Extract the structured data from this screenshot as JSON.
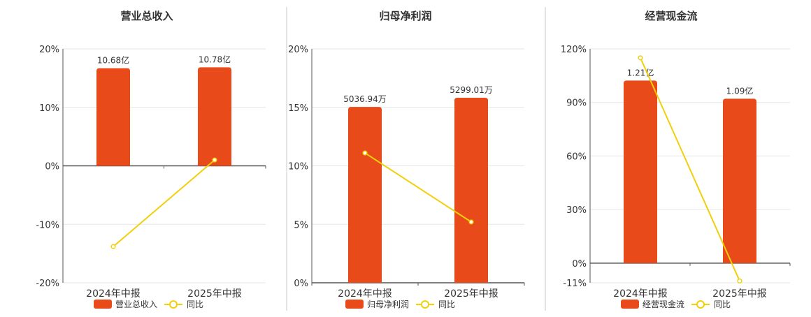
{
  "colors": {
    "bar": "#e84a1a",
    "line": "#f2cf0c",
    "grid": "#e6e6e6",
    "axis": "#555555",
    "divider": "#c8c8c8",
    "text": "#333333"
  },
  "legend_line_label": "同比",
  "chart_data": [
    {
      "type": "bar",
      "title": "营业总收入",
      "categories": [
        "2024年中报",
        "2025年中报"
      ],
      "bar_values": [
        10.68,
        10.78
      ],
      "bar_labels": [
        "10.68亿",
        "10.78亿"
      ],
      "bar_series_name": "营业总收入",
      "line_series_name": "同比",
      "line_values": [
        -13.8,
        1.0
      ],
      "ylim": [
        -20,
        20
      ],
      "yticks": [
        20,
        10,
        0,
        -10,
        -20
      ],
      "ytick_labels": [
        "20%",
        "10%",
        "0%",
        "-10%",
        "-20%"
      ],
      "bar_ylim": [
        -12.8,
        12.8
      ],
      "grid": true,
      "legend_position": "bottom"
    },
    {
      "type": "bar",
      "title": "归母净利润",
      "categories": [
        "2024年中报",
        "2025年中报"
      ],
      "bar_values": [
        5036.94,
        5299.01
      ],
      "bar_labels": [
        "5036.94万",
        "5299.01万"
      ],
      "bar_series_name": "归母净利润",
      "line_series_name": "同比",
      "line_values": [
        11.1,
        5.2
      ],
      "ylim": [
        0,
        20
      ],
      "yticks": [
        20,
        15,
        10,
        5,
        0
      ],
      "ytick_labels": [
        "20%",
        "15%",
        "10%",
        "5%",
        "0%"
      ],
      "bar_ylim": [
        0,
        6700
      ],
      "grid": true,
      "legend_position": "bottom"
    },
    {
      "type": "bar",
      "title": "经营现金流",
      "categories": [
        "2024年中报",
        "2025年中报"
      ],
      "bar_values": [
        1.21,
        1.09
      ],
      "bar_labels": [
        "1.21亿",
        "1.09亿"
      ],
      "bar_series_name": "经营现金流",
      "line_series_name": "同比",
      "line_values": [
        115,
        -10
      ],
      "ylim": [
        -11,
        120
      ],
      "yticks": [
        120,
        90,
        60,
        30,
        0,
        -11
      ],
      "ytick_labels": [
        "120%",
        "90%",
        "60%",
        "30%",
        "0%",
        "-11%"
      ],
      "bar_ylim": [
        -0.13,
        1.42
      ],
      "grid": true,
      "legend_position": "bottom"
    }
  ]
}
